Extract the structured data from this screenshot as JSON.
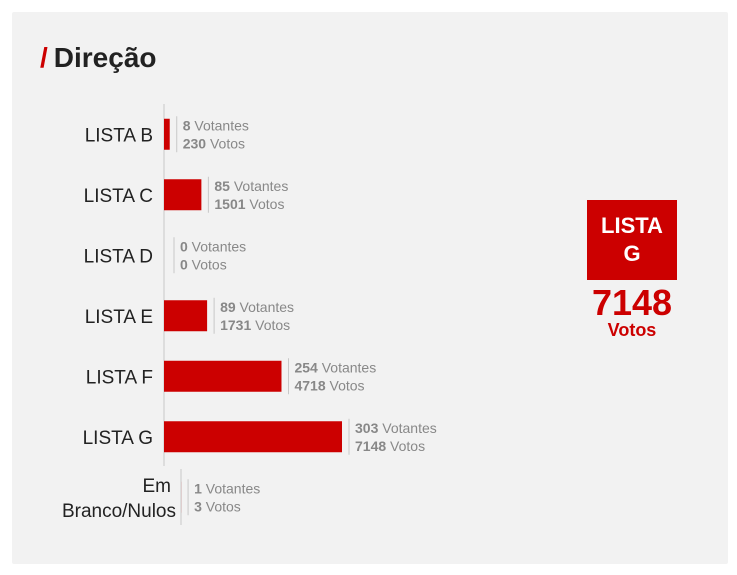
{
  "title_slash": "/",
  "title": "Direção",
  "winner": {
    "label": "LISTA G",
    "votes": "7148",
    "votes_label": "Votos"
  },
  "colors": {
    "accent": "#cc0000",
    "background": "#f2f2f2",
    "label_text": "#222222",
    "stat_text": "#888888"
  },
  "chart_data": {
    "type": "bar",
    "orientation": "horizontal",
    "categories": [
      "LISTA B",
      "LISTA C",
      "LISTA D",
      "LISTA E",
      "LISTA F",
      "LISTA G",
      "Em Branco/Nulos"
    ],
    "category_lines": [
      [
        "LISTA B"
      ],
      [
        "LISTA C"
      ],
      [
        "LISTA D"
      ],
      [
        "LISTA E"
      ],
      [
        "LISTA F"
      ],
      [
        "LISTA G"
      ],
      [
        "Em",
        "Branco/Nulos"
      ]
    ],
    "series": [
      {
        "name": "Votantes",
        "values": [
          8,
          85,
          0,
          89,
          254,
          303,
          1
        ]
      },
      {
        "name": "Votos",
        "values": [
          230,
          1501,
          0,
          1731,
          4718,
          7148,
          3
        ]
      }
    ],
    "bar_series": "Votos",
    "value_unit_votantes": "Votantes",
    "value_unit_votos": "Votos",
    "xlim": [
      0,
      7148
    ],
    "grid": false
  }
}
